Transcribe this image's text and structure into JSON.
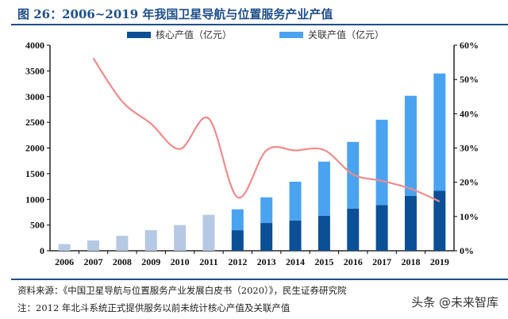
{
  "title": "图 26：2006~2019 年我国卫星导航与位置服务产业产值",
  "colors": {
    "core": "#0b4f96",
    "related": "#4aa3f0",
    "total_pre2012": "#b5c9e4",
    "line": "#f08b8b",
    "title": "#1e4f8a"
  },
  "chart_data": {
    "type": "bar+line",
    "categories": [
      "2006",
      "2007",
      "2008",
      "2009",
      "2010",
      "2011",
      "2012",
      "2013",
      "2014",
      "2015",
      "2016",
      "2017",
      "2018",
      "2019"
    ],
    "series": [
      {
        "name": "核心产值（亿元）",
        "type": "stacked-bar",
        "axis": "left",
        "values": [
          null,
          null,
          null,
          null,
          null,
          null,
          400,
          540,
          590,
          680,
          820,
          890,
          1070,
          1166
        ]
      },
      {
        "name": "关联产值（亿元）",
        "type": "stacked-bar",
        "axis": "left",
        "values": [
          null,
          null,
          null,
          null,
          null,
          null,
          406,
          500,
          754,
          1055,
          1298,
          1660,
          1946,
          2284
        ]
      },
      {
        "type": "bar",
        "axis": "left",
        "values": [
          130,
          200,
          290,
          400,
          500,
          700,
          null,
          null,
          null,
          null,
          null,
          null,
          null,
          null
        ]
      },
      {
        "type": "line",
        "axis": "right",
        "values": [
          null,
          56.2,
          43.6,
          37.1,
          29.7,
          38.6,
          15.6,
          29.3,
          29.3,
          29.4,
          22.3,
          20.4,
          18.1,
          14.4
        ]
      }
    ],
    "left_axis": {
      "ylim": [
        0,
        4000
      ],
      "ticks": [
        "0",
        "500",
        "1000",
        "1500",
        "2000",
        "2500",
        "3000",
        "3500",
        "4000"
      ]
    },
    "right_axis": {
      "ylim": [
        0,
        60
      ],
      "ticks": [
        "0%",
        "10%",
        "20%",
        "30%",
        "40%",
        "50%",
        "60%"
      ]
    },
    "legend": "top",
    "grid": false
  },
  "legend": {
    "core": "核心产值（亿元）",
    "related": "关联产值（亿元）"
  },
  "footer": {
    "source": "资料来源：《中国卫星导航与位置服务产业发展白皮书（2020）》，民生证券研究院",
    "note": "注：2012 年北斗系统正式提供服务以前未统计核心产值及关联产值"
  },
  "watermark": "头条 @未来智库"
}
